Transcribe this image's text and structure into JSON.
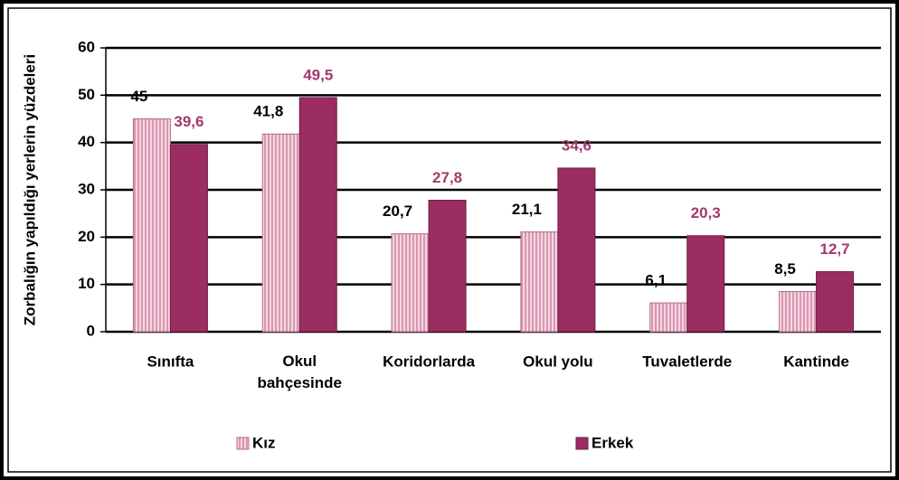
{
  "chart_data": {
    "type": "bar",
    "y_label": "Zorbalığın yapıldığı yerlerin yüzdeleri",
    "categories": [
      "Sınıfta",
      "Okul bahçesinde",
      "Koridorlarda",
      "Okul yolu",
      "Tuvaletlerde",
      "Kantinde"
    ],
    "series": [
      {
        "name": "Kız",
        "color": "#e9b8cb",
        "values": [
          45,
          41.8,
          20.7,
          21.1,
          6.1,
          8.5
        ],
        "value_labels": [
          "45",
          "41,8",
          "20,7",
          "21,1",
          "6,1",
          "8,5"
        ]
      },
      {
        "name": "Erkek",
        "color": "#9b2d62",
        "values": [
          39.6,
          49.5,
          27.8,
          34.6,
          20.3,
          12.7
        ],
        "value_labels": [
          "39,6",
          "49,5",
          "27,8",
          "34,6",
          "20,3",
          "12,7"
        ]
      }
    ],
    "ylim": [
      0,
      60
    ],
    "yticks": [
      0,
      10,
      20,
      30,
      40,
      50,
      60
    ],
    "grid": true,
    "legend": "bottom"
  }
}
